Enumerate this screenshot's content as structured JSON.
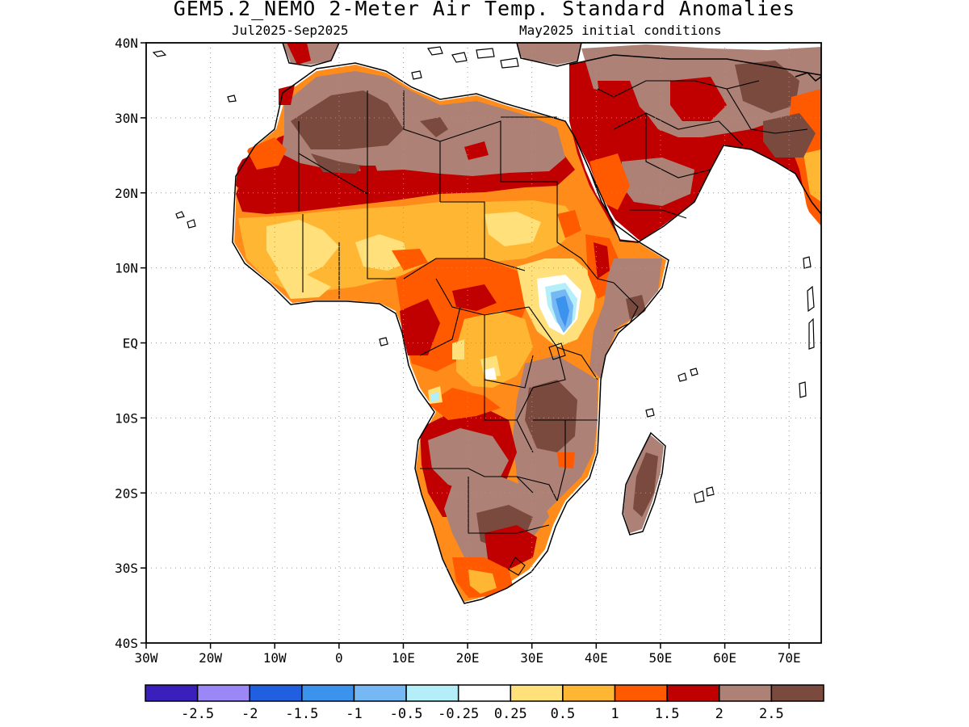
{
  "title": "GEM5.2_NEMO 2-Meter Air Temp. Standard Anomalies",
  "subtitle_left": "Jul2025-Sep2025",
  "subtitle_right": "May2025 initial conditions",
  "map": {
    "lon_range": [
      -30,
      75
    ],
    "lat_range": [
      -40,
      40
    ],
    "lat_ticks": [
      {
        "value": 40,
        "label": "40N"
      },
      {
        "value": 30,
        "label": "30N"
      },
      {
        "value": 20,
        "label": "20N"
      },
      {
        "value": 10,
        "label": "10N"
      },
      {
        "value": 0,
        "label": "EQ"
      },
      {
        "value": -10,
        "label": "10S"
      },
      {
        "value": -20,
        "label": "20S"
      },
      {
        "value": -30,
        "label": "30S"
      },
      {
        "value": -40,
        "label": "40S"
      }
    ],
    "lon_ticks": [
      {
        "value": -30,
        "label": "30W"
      },
      {
        "value": -20,
        "label": "20W"
      },
      {
        "value": -10,
        "label": "10W"
      },
      {
        "value": 0,
        "label": "0"
      },
      {
        "value": 10,
        "label": "10E"
      },
      {
        "value": 20,
        "label": "20E"
      },
      {
        "value": 30,
        "label": "30E"
      },
      {
        "value": 40,
        "label": "40E"
      },
      {
        "value": 50,
        "label": "50E"
      },
      {
        "value": 60,
        "label": "60E"
      },
      {
        "value": 70,
        "label": "70E"
      }
    ]
  },
  "colorbar": {
    "colors": [
      "#3a1fbd",
      "#9b87f5",
      "#1f5fe0",
      "#3b93ee",
      "#76b8f4",
      "#b4eef8",
      "#ffffff",
      "#ffe07a",
      "#ffb733",
      "#ff5a00",
      "#c00000",
      "#ad8175",
      "#7a4a3e"
    ],
    "labels": [
      "-2.5",
      "-2",
      "-1.5",
      "-1",
      "-0.5",
      "-0.25",
      "0.25",
      "0.5",
      "1",
      "1.5",
      "2",
      "2.5"
    ]
  }
}
